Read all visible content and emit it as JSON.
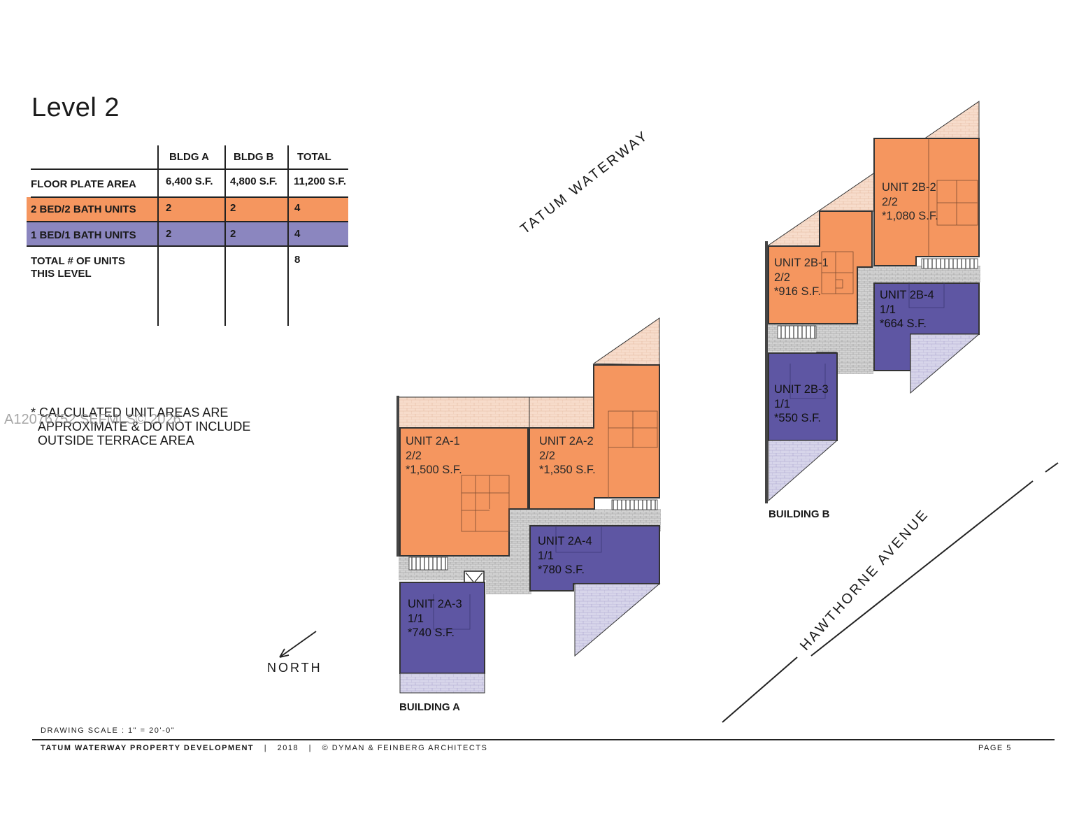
{
  "title": "Level 2",
  "table": {
    "headers": [
      "",
      "BLDG A",
      "BLDG B",
      "TOTAL"
    ],
    "rows": [
      {
        "label": "FLOOR PLATE AREA",
        "a": "6,400 S.F.",
        "b": "4,800 S.F.",
        "total": "11,200 S.F."
      },
      {
        "label": "2 BED/2 BATH UNITS",
        "a": "2",
        "b": "2",
        "total": "4"
      },
      {
        "label": "1 BED/1 BATH UNITS",
        "a": "2",
        "b": "2",
        "total": "4"
      },
      {
        "label_line1": "TOTAL # OF UNITS",
        "label_line2": "THIS LEVEL",
        "a": "",
        "b": "",
        "total": "8"
      }
    ]
  },
  "note": {
    "line1": "* CALCULATED UNIT AREAS ARE",
    "line2": "APPROXIMATE & DO NOT INCLUDE",
    "line3": "OUTSIDE TERRACE AREA"
  },
  "watermark": "A12076752 SEFMLS© 2026",
  "roads": {
    "tatum": "TATUM WATERWAY",
    "hawthorne": "HAWTHORNE AVENUE"
  },
  "north_label": "NORTH",
  "buildings": {
    "a": "BUILDING A",
    "b": "BUILDING B"
  },
  "units": {
    "u2a1": {
      "name": "UNIT 2A-1",
      "type": "2/2",
      "area": "*1,500 S.F."
    },
    "u2a2": {
      "name": "UNIT 2A-2",
      "type": "2/2",
      "area": "*1,350 S.F."
    },
    "u2a3": {
      "name": "UNIT 2A-3",
      "type": "1/1",
      "area": "*740 S.F."
    },
    "u2a4": {
      "name": "UNIT 2A-4",
      "type": "1/1",
      "area": "*780 S.F."
    },
    "u2b1": {
      "name": "UNIT 2B-1",
      "type": "2/2",
      "area": "*916 S.F."
    },
    "u2b2": {
      "name": "UNIT 2B-2",
      "type": "2/2",
      "area": "*1,080 S.F."
    },
    "u2b3": {
      "name": "UNIT 2B-3",
      "type": "1/1",
      "area": "*550 S.F."
    },
    "u2b4": {
      "name": "UNIT 2B-4",
      "type": "1/1",
      "area": "*664 S.F."
    }
  },
  "footer": {
    "scale": "DRAWING SCALE :  1\" = 20'-0\"",
    "project": "TATUM WATERWAY PROPERTY DEVELOPMENT",
    "sep1": "|",
    "year": "2018",
    "sep2": "|",
    "credit": "© DYMAN & FEINBERG ARCHITECTS",
    "page": "PAGE 5"
  },
  "colors": {
    "two_bed": "#f5965f",
    "one_bed": "#5e56a3",
    "terrace_orange": "#f7dccb",
    "terrace_purple": "#cfcce6",
    "corridor": "#cfcfcf",
    "ink": "#1a1a1a"
  }
}
